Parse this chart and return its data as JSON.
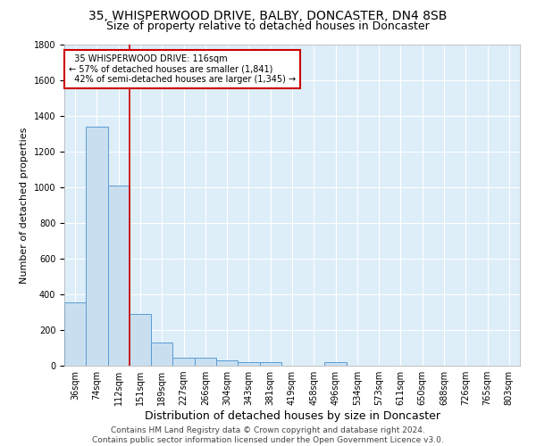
{
  "title": "35, WHISPERWOOD DRIVE, BALBY, DONCASTER, DN4 8SB",
  "subtitle": "Size of property relative to detached houses in Doncaster",
  "xlabel": "Distribution of detached houses by size in Doncaster",
  "ylabel": "Number of detached properties",
  "categories": [
    "36sqm",
    "74sqm",
    "112sqm",
    "151sqm",
    "189sqm",
    "227sqm",
    "266sqm",
    "304sqm",
    "343sqm",
    "381sqm",
    "419sqm",
    "458sqm",
    "496sqm",
    "534sqm",
    "573sqm",
    "611sqm",
    "650sqm",
    "688sqm",
    "726sqm",
    "765sqm",
    "803sqm"
  ],
  "values": [
    355,
    1340,
    1010,
    290,
    130,
    45,
    45,
    30,
    20,
    20,
    0,
    0,
    18,
    0,
    0,
    0,
    0,
    0,
    0,
    0,
    0
  ],
  "bar_color": "#c9dff0",
  "bar_edge_color": "#5b9bd5",
  "vline_color": "#cc0000",
  "vline_idx": 2,
  "annotation_text": "  35 WHISPERWOOD DRIVE: 116sqm\n← 57% of detached houses are smaller (1,841)\n  42% of semi-detached houses are larger (1,345) →",
  "annotation_box_color": "white",
  "annotation_box_edge_color": "#cc0000",
  "ylim": [
    0,
    1800
  ],
  "yticks": [
    0,
    200,
    400,
    600,
    800,
    1000,
    1200,
    1400,
    1600,
    1800
  ],
  "bg_color": "#ddeef9",
  "grid_color": "white",
  "footer_text": "Contains HM Land Registry data © Crown copyright and database right 2024.\nContains public sector information licensed under the Open Government Licence v3.0.",
  "title_fontsize": 10,
  "subtitle_fontsize": 9,
  "xlabel_fontsize": 9,
  "ylabel_fontsize": 8,
  "tick_fontsize": 7,
  "footer_fontsize": 6.5
}
